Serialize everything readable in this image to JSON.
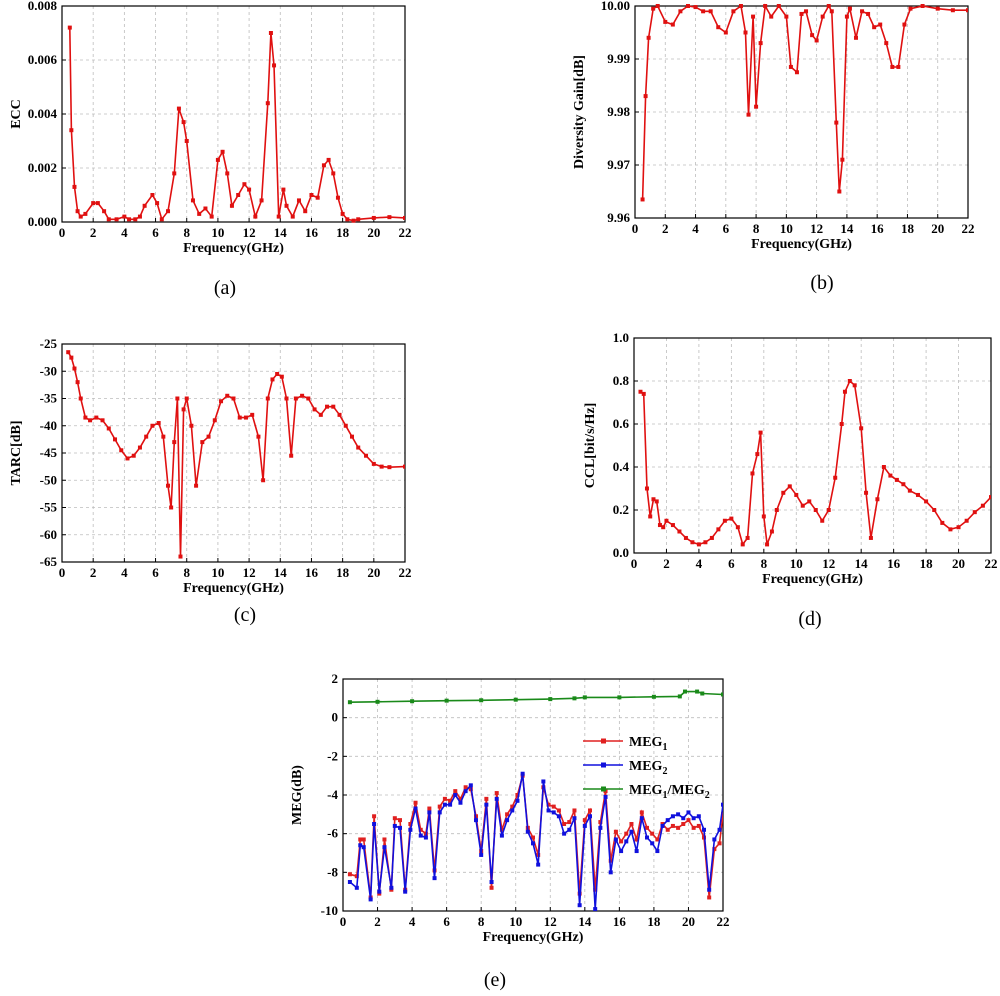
{
  "captions": [
    "(a)",
    "(b)",
    "(c)",
    "(d)",
    "(e)"
  ],
  "chart_data": [
    {
      "type": "line",
      "xlabel": "Frequency(GHz)",
      "ylabel": "ECC",
      "xlim": [
        0,
        22
      ],
      "ylim": [
        0,
        0.008
      ],
      "xticks": [
        0,
        2,
        4,
        6,
        8,
        10,
        12,
        14,
        16,
        18,
        20,
        22
      ],
      "yticks": [
        0.0,
        0.002,
        0.004,
        0.006,
        0.008
      ],
      "ytick_labels": [
        "0.000",
        "0.002",
        "0.004",
        "0.006",
        "0.008"
      ],
      "grid": true,
      "series": [
        {
          "color": "#e01010",
          "x": [
            0.5,
            0.6,
            0.8,
            1.0,
            1.2,
            1.5,
            2.0,
            2.3,
            2.7,
            3.0,
            3.5,
            4.0,
            4.3,
            4.7,
            5.0,
            5.3,
            5.8,
            6.1,
            6.4,
            6.8,
            7.2,
            7.5,
            7.8,
            8.0,
            8.4,
            8.8,
            9.2,
            9.6,
            10.0,
            10.3,
            10.6,
            10.9,
            11.3,
            11.7,
            12.0,
            12.4,
            12.8,
            13.2,
            13.4,
            13.6,
            13.9,
            14.2,
            14.4,
            14.8,
            15.2,
            15.6,
            16.0,
            16.4,
            16.8,
            17.1,
            17.4,
            17.7,
            18.0,
            18.3,
            18.7,
            19.0,
            20.0,
            21.0,
            22.0
          ],
          "y": [
            0.0072,
            0.0034,
            0.0013,
            0.0004,
            0.0002,
            0.0003,
            0.0007,
            0.0007,
            0.0004,
            0.0001,
            0.0001,
            0.0002,
            0.0001,
            0.0001,
            0.0002,
            0.0006,
            0.001,
            0.0007,
            0.0001,
            0.0004,
            0.0018,
            0.0042,
            0.0037,
            0.003,
            0.0008,
            0.0003,
            0.0005,
            0.0002,
            0.0023,
            0.0026,
            0.0018,
            0.0006,
            0.001,
            0.0014,
            0.0012,
            0.0002,
            0.0008,
            0.0044,
            0.007,
            0.0058,
            0.0002,
            0.0012,
            0.0006,
            0.0002,
            0.0008,
            0.0004,
            0.001,
            0.0009,
            0.0021,
            0.0023,
            0.0018,
            0.0009,
            0.0003,
            0.0001,
            5e-05,
            0.0001,
            0.00015,
            0.00018,
            0.00015
          ]
        }
      ]
    },
    {
      "type": "line",
      "xlabel": "Frequency(GHz)",
      "ylabel": "Diversity Gain[dB]",
      "xlim": [
        0,
        22
      ],
      "ylim": [
        9.96,
        10.0
      ],
      "xticks": [
        0,
        2,
        4,
        6,
        8,
        10,
        12,
        14,
        16,
        18,
        20,
        22
      ],
      "yticks": [
        9.96,
        9.97,
        9.98,
        9.99,
        10.0
      ],
      "ytick_labels": [
        "9.96",
        "9.97",
        "9.98",
        "9.99",
        "10.00"
      ],
      "grid": true,
      "series": [
        {
          "color": "#e01010",
          "x": [
            0.5,
            0.7,
            0.9,
            1.2,
            1.5,
            2.0,
            2.5,
            3.0,
            3.5,
            4.0,
            4.5,
            5.0,
            5.5,
            6.0,
            6.5,
            7.0,
            7.3,
            7.5,
            7.8,
            8.0,
            8.3,
            8.6,
            9.0,
            9.5,
            10.0,
            10.3,
            10.7,
            11.0,
            11.3,
            11.7,
            12.0,
            12.4,
            12.8,
            13.0,
            13.3,
            13.5,
            13.7,
            14.0,
            14.2,
            14.6,
            15.0,
            15.4,
            15.8,
            16.2,
            16.6,
            17.0,
            17.4,
            17.8,
            18.2,
            19.0,
            20.0,
            21.0,
            22.0
          ],
          "y": [
            9.9635,
            9.983,
            9.994,
            9.9995,
            10.0,
            9.997,
            9.9965,
            9.999,
            10.0,
            9.9998,
            9.999,
            9.999,
            9.996,
            9.995,
            9.999,
            10.0,
            9.995,
            9.9795,
            9.998,
            9.981,
            9.993,
            10.0,
            9.998,
            10.0,
            9.998,
            9.9885,
            9.9875,
            9.9985,
            9.999,
            9.9945,
            9.9935,
            9.998,
            10.0,
            9.999,
            9.978,
            9.965,
            9.971,
            9.998,
            9.9995,
            9.994,
            9.999,
            9.9985,
            9.996,
            9.9965,
            9.993,
            9.9885,
            9.9885,
            9.9965,
            9.9995,
            10.0,
            9.9995,
            9.9992,
            9.9992
          ]
        }
      ]
    },
    {
      "type": "line",
      "xlabel": "Frequency(GHz)",
      "ylabel": "TARC[dB]",
      "xlim": [
        0,
        22
      ],
      "ylim": [
        -65,
        -25
      ],
      "xticks": [
        0,
        2,
        4,
        6,
        8,
        10,
        12,
        14,
        16,
        18,
        20,
        22
      ],
      "yticks": [
        -65,
        -60,
        -55,
        -50,
        -45,
        -40,
        -35,
        -30,
        -25
      ],
      "ytick_labels": [
        "-65",
        "-60",
        "-55",
        "-50",
        "-45",
        "-40",
        "-35",
        "-30",
        "-25"
      ],
      "grid": true,
      "series": [
        {
          "color": "#e01010",
          "x": [
            0.4,
            0.6,
            0.8,
            1.0,
            1.2,
            1.5,
            1.8,
            2.2,
            2.6,
            3.0,
            3.4,
            3.8,
            4.2,
            4.6,
            5.0,
            5.4,
            5.8,
            6.2,
            6.5,
            6.8,
            7.0,
            7.2,
            7.4,
            7.6,
            7.8,
            8.0,
            8.3,
            8.6,
            9.0,
            9.4,
            9.8,
            10.2,
            10.6,
            11.0,
            11.4,
            11.8,
            12.2,
            12.6,
            12.9,
            13.2,
            13.5,
            13.8,
            14.1,
            14.4,
            14.7,
            15.0,
            15.4,
            15.8,
            16.2,
            16.6,
            17.0,
            17.4,
            17.8,
            18.2,
            18.6,
            19.0,
            19.5,
            20.0,
            20.5,
            21.0,
            22.0
          ],
          "y": [
            -26.5,
            -27.5,
            -29.5,
            -32,
            -35,
            -38.5,
            -39,
            -38.5,
            -39,
            -40.5,
            -42.5,
            -44.5,
            -46,
            -45.5,
            -44,
            -42,
            -40,
            -39.5,
            -42,
            -51,
            -55,
            -43,
            -35,
            -64,
            -37,
            -35,
            -40,
            -51,
            -43,
            -42,
            -39,
            -35.5,
            -34.5,
            -35,
            -38.5,
            -38.5,
            -38,
            -42,
            -50,
            -35,
            -31.5,
            -30.5,
            -31,
            -35,
            -45.5,
            -35,
            -34.5,
            -35,
            -37,
            -38,
            -36.5,
            -36.5,
            -38,
            -40,
            -42,
            -44,
            -45.5,
            -47,
            -47.5,
            -47.6,
            -47.5
          ]
        }
      ]
    },
    {
      "type": "line",
      "xlabel": "Frequency(GHz)",
      "ylabel": "CCL[bit/s/Hz]",
      "xlim": [
        0,
        22
      ],
      "ylim": [
        0,
        1.0
      ],
      "xticks": [
        0,
        2,
        4,
        6,
        8,
        10,
        12,
        14,
        16,
        18,
        20,
        22
      ],
      "yticks": [
        0.0,
        0.2,
        0.4,
        0.6,
        0.8,
        1.0
      ],
      "ytick_labels": [
        "0.0",
        "0.2",
        "0.4",
        "0.6",
        "0.8",
        "1.0"
      ],
      "grid": true,
      "series": [
        {
          "color": "#e01010",
          "x": [
            0.4,
            0.6,
            0.8,
            1.0,
            1.2,
            1.4,
            1.6,
            1.8,
            2.0,
            2.4,
            2.8,
            3.2,
            3.6,
            4.0,
            4.4,
            4.8,
            5.2,
            5.6,
            6.0,
            6.4,
            6.7,
            7.0,
            7.3,
            7.6,
            7.8,
            8.0,
            8.2,
            8.5,
            8.8,
            9.2,
            9.6,
            10.0,
            10.4,
            10.8,
            11.2,
            11.6,
            12.0,
            12.4,
            12.8,
            13.0,
            13.3,
            13.6,
            14.0,
            14.3,
            14.6,
            15.0,
            15.4,
            15.8,
            16.2,
            16.6,
            17.0,
            17.5,
            18.0,
            18.5,
            19.0,
            19.5,
            20.0,
            20.5,
            21.0,
            21.5,
            22.0
          ],
          "y": [
            0.75,
            0.74,
            0.3,
            0.17,
            0.25,
            0.24,
            0.13,
            0.12,
            0.15,
            0.13,
            0.1,
            0.07,
            0.05,
            0.04,
            0.05,
            0.07,
            0.11,
            0.15,
            0.16,
            0.12,
            0.04,
            0.07,
            0.37,
            0.46,
            0.56,
            0.17,
            0.04,
            0.1,
            0.2,
            0.28,
            0.31,
            0.27,
            0.22,
            0.24,
            0.2,
            0.15,
            0.2,
            0.35,
            0.6,
            0.75,
            0.8,
            0.78,
            0.58,
            0.28,
            0.07,
            0.25,
            0.4,
            0.36,
            0.34,
            0.32,
            0.29,
            0.27,
            0.24,
            0.2,
            0.14,
            0.11,
            0.12,
            0.15,
            0.19,
            0.22,
            0.26
          ]
        }
      ]
    },
    {
      "type": "line",
      "xlabel": "Frequency(GHz)",
      "ylabel": "MEG(dB)",
      "xlim": [
        0,
        22
      ],
      "ylim": [
        -10,
        2
      ],
      "xticks": [
        0,
        2,
        4,
        6,
        8,
        10,
        12,
        14,
        16,
        18,
        20,
        22
      ],
      "yticks": [
        -10,
        -8,
        -6,
        -4,
        -2,
        0,
        2
      ],
      "ytick_labels": [
        "-10",
        "-8",
        "-6",
        "-4",
        "-2",
        "0",
        "2"
      ],
      "grid": true,
      "legend": {
        "position": "right-middle"
      },
      "series": [
        {
          "name": "MEG",
          "sub": "1",
          "color": "#e02020",
          "x": [
            0.4,
            0.8,
            1.0,
            1.2,
            1.6,
            1.8,
            2.1,
            2.4,
            2.8,
            3.0,
            3.3,
            3.6,
            3.9,
            4.2,
            4.5,
            4.8,
            5.0,
            5.3,
            5.6,
            5.9,
            6.2,
            6.5,
            6.8,
            7.1,
            7.4,
            7.7,
            8.0,
            8.3,
            8.6,
            8.9,
            9.2,
            9.5,
            9.8,
            10.1,
            10.4,
            10.7,
            11.0,
            11.3,
            11.6,
            11.9,
            12.2,
            12.5,
            12.8,
            13.1,
            13.4,
            13.7,
            14.0,
            14.3,
            14.6,
            14.9,
            15.2,
            15.5,
            15.8,
            16.1,
            16.4,
            16.7,
            17.0,
            17.3,
            17.6,
            17.9,
            18.2,
            18.5,
            18.8,
            19.1,
            19.4,
            19.7,
            20.0,
            20.3,
            20.6,
            20.9,
            21.2,
            21.5,
            21.8,
            22.0
          ],
          "y": [
            -8.1,
            -8.2,
            -6.3,
            -6.3,
            -9.3,
            -5.1,
            -9.1,
            -6.3,
            -8.9,
            -5.2,
            -5.3,
            -8.9,
            -5.5,
            -4.4,
            -5.8,
            -6.0,
            -4.7,
            -7.9,
            -4.6,
            -4.2,
            -4.3,
            -3.8,
            -4.2,
            -3.6,
            -3.7,
            -5.1,
            -6.9,
            -4.2,
            -8.8,
            -3.9,
            -5.8,
            -5.0,
            -4.6,
            -4.0,
            -3.0,
            -5.7,
            -6.2,
            -7.1,
            -3.6,
            -4.5,
            -4.6,
            -4.8,
            -5.5,
            -5.4,
            -4.8,
            -9.1,
            -5.3,
            -4.8,
            -8.9,
            -5.4,
            -3.8,
            -7.4,
            -5.9,
            -6.4,
            -6.0,
            -5.5,
            -6.3,
            -4.9,
            -5.7,
            -6.0,
            -6.3,
            -5.5,
            -5.8,
            -5.6,
            -5.7,
            -5.5,
            -5.3,
            -5.7,
            -5.6,
            -6.2,
            -9.3,
            -6.8,
            -6.5,
            -5.0
          ]
        },
        {
          "name": "MEG",
          "sub": "2",
          "color": "#1010dd",
          "x": [
            0.4,
            0.8,
            1.0,
            1.2,
            1.6,
            1.8,
            2.1,
            2.4,
            2.8,
            3.0,
            3.3,
            3.6,
            3.9,
            4.2,
            4.5,
            4.8,
            5.0,
            5.3,
            5.6,
            5.9,
            6.2,
            6.5,
            6.8,
            7.1,
            7.4,
            7.7,
            8.0,
            8.3,
            8.6,
            8.9,
            9.2,
            9.5,
            9.8,
            10.1,
            10.4,
            10.7,
            11.0,
            11.3,
            11.6,
            11.9,
            12.2,
            12.5,
            12.8,
            13.1,
            13.4,
            13.7,
            14.0,
            14.3,
            14.6,
            14.9,
            15.2,
            15.5,
            15.8,
            16.1,
            16.4,
            16.7,
            17.0,
            17.3,
            17.6,
            17.9,
            18.2,
            18.5,
            18.8,
            19.1,
            19.4,
            19.7,
            20.0,
            20.3,
            20.6,
            20.9,
            21.2,
            21.5,
            21.8,
            22.0
          ],
          "y": [
            -8.5,
            -8.8,
            -6.6,
            -6.7,
            -9.4,
            -5.5,
            -9.0,
            -6.7,
            -8.8,
            -5.6,
            -5.7,
            -9.0,
            -5.8,
            -4.7,
            -6.1,
            -6.2,
            -4.9,
            -8.3,
            -4.9,
            -4.5,
            -4.5,
            -4.0,
            -4.4,
            -3.8,
            -3.5,
            -5.3,
            -7.1,
            -4.5,
            -8.5,
            -4.2,
            -6.1,
            -5.3,
            -4.8,
            -4.3,
            -2.9,
            -5.9,
            -6.5,
            -7.6,
            -3.3,
            -4.8,
            -4.9,
            -5.1,
            -6.0,
            -5.8,
            -5.2,
            -9.7,
            -5.6,
            -5.1,
            -9.9,
            -5.7,
            -4.1,
            -8.0,
            -6.3,
            -6.9,
            -6.4,
            -5.9,
            -6.9,
            -5.2,
            -6.2,
            -6.5,
            -6.9,
            -5.6,
            -5.3,
            -5.1,
            -5.0,
            -5.2,
            -4.9,
            -5.2,
            -5.1,
            -5.8,
            -8.9,
            -6.3,
            -5.8,
            -4.5
          ]
        },
        {
          "name": "MEG",
          "sub": "1",
          "name2": "/MEG",
          "sub2": "2",
          "color": "#1a8a1a",
          "x": [
            0.4,
            2.0,
            4.0,
            6.0,
            8.0,
            10.0,
            12.0,
            13.4,
            14.0,
            16.0,
            18.0,
            19.5,
            19.8,
            20.5,
            20.8,
            22.0
          ],
          "y": [
            0.8,
            0.82,
            0.85,
            0.88,
            0.9,
            0.93,
            0.96,
            1.0,
            1.05,
            1.05,
            1.08,
            1.1,
            1.35,
            1.35,
            1.25,
            1.2
          ]
        }
      ]
    }
  ]
}
